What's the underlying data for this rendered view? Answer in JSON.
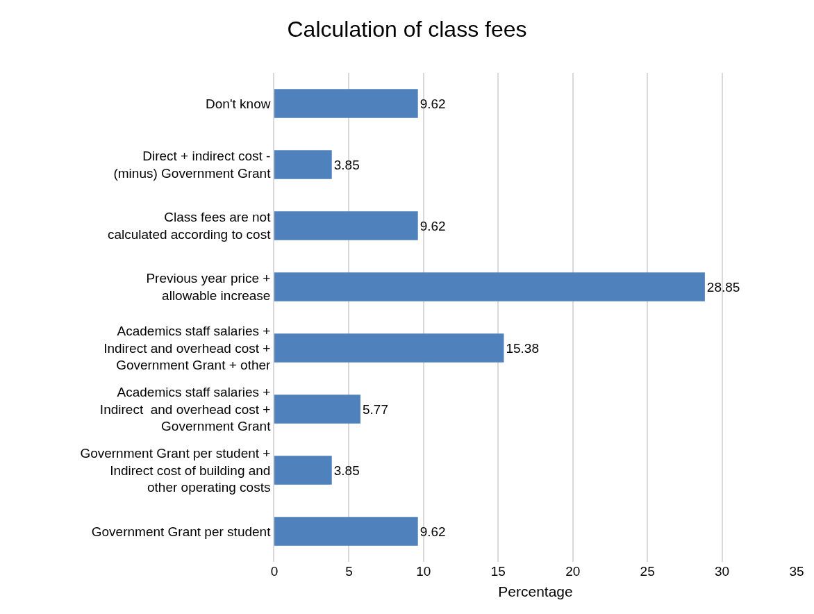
{
  "chart_data": {
    "type": "bar",
    "orientation": "horizontal",
    "title": "Calculation of class fees",
    "xlabel": "Percentage",
    "categories": [
      "Don't know",
      "Direct + indirect cost -\n(minus) Government Grant",
      "Class fees are not\ncalculated according to cost",
      "Previous year price +\nallowable increase",
      "Academics staff salaries +\nIndirect and overhead cost +\nGovernment Grant + other",
      "Academics staff salaries +\nIndirect  and overhead cost +\nGovernment Grant",
      "Government Grant per student +\nIndirect cost of building and\nother operating costs",
      "Government Grant per student"
    ],
    "values": [
      9.62,
      3.85,
      9.62,
      28.85,
      15.38,
      5.77,
      3.85,
      9.62
    ],
    "color": "#4f81bd",
    "xlim": [
      0,
      35
    ],
    "xticks": [
      0,
      5,
      10,
      15,
      20,
      25,
      30,
      35
    ],
    "grid": "x",
    "data_labels": true
  }
}
